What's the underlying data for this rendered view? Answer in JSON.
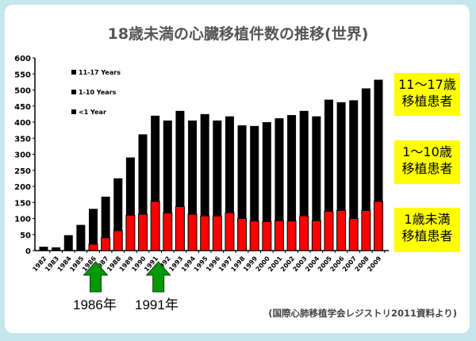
{
  "title": "18歳未満の心臓移植件数の推移(世界)",
  "source": "(国際心肺移植学会レジストリ2011資料より)",
  "side_labels": [
    {
      "line1": "11〜17歳",
      "line2": "移植患者"
    },
    {
      "line1": "1〜10歳",
      "line2": "移植患者"
    },
    {
      "line1": "1歳未満",
      "line2": "移植患者"
    }
  ],
  "annotations": [
    {
      "label": "1986年",
      "year": "1986"
    },
    {
      "label": "1991年",
      "year": "1991"
    }
  ],
  "colors": {
    "black_stack": "#000000",
    "under1": "#ff0000",
    "arrow": "#009900",
    "highlight": "#ffff00"
  },
  "chart_data": {
    "type": "bar",
    "stacked": true,
    "title": "",
    "xlabel": "",
    "ylabel": "",
    "ylim": [
      0,
      600
    ],
    "yticks": [
      0,
      50,
      100,
      150,
      200,
      250,
      300,
      350,
      400,
      450,
      500,
      550,
      600
    ],
    "legend": [
      "11-17 Years",
      "1-10 Years",
      "<1 Year"
    ],
    "legend_position": "top-left",
    "categories": [
      "1982",
      "1983",
      "1984",
      "1985",
      "1986",
      "1987",
      "1988",
      "1989",
      "1990",
      "1991",
      "1992",
      "1993",
      "1994",
      "1995",
      "1996",
      "1997",
      "1998",
      "1999",
      "2000",
      "2001",
      "2002",
      "2003",
      "2004",
      "2005",
      "2006",
      "2007",
      "2008",
      "2009"
    ],
    "totals": [
      12,
      10,
      48,
      80,
      130,
      168,
      225,
      290,
      362,
      420,
      405,
      435,
      405,
      425,
      405,
      418,
      390,
      388,
      400,
      412,
      422,
      435,
      418,
      470,
      462,
      468,
      505,
      532
    ],
    "series": [
      {
        "name": "<1 Year",
        "values": [
          0,
          0,
          0,
          0,
          20,
          40,
          62,
          110,
          113,
          153,
          117,
          137,
          113,
          108,
          108,
          118,
          100,
          92,
          90,
          93,
          92,
          108,
          93,
          122,
          125,
          100,
          125,
          153
        ]
      }
    ]
  }
}
